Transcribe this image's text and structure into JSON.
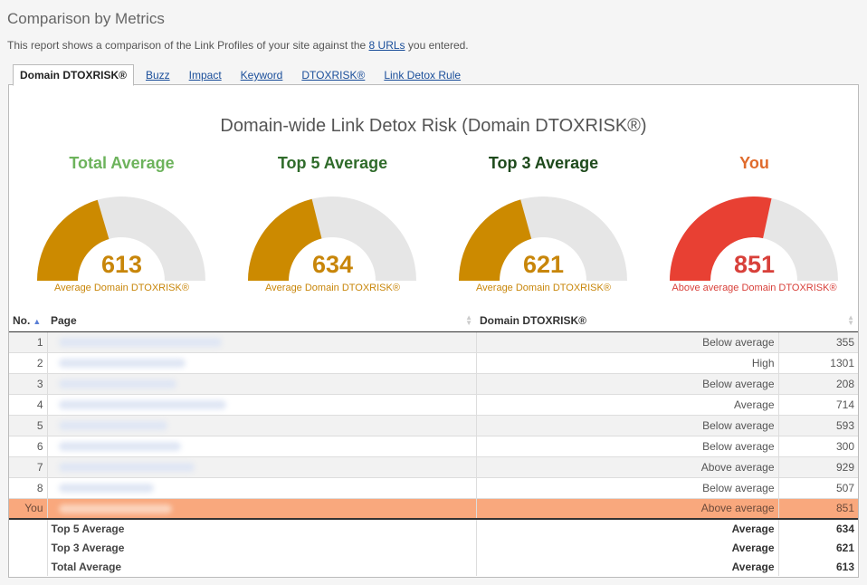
{
  "header": {
    "title": "Comparison by Metrics",
    "desc_before": "This report shows a comparison of the Link Profiles of your site against the",
    "desc_link": "8 URLs",
    "desc_after": "you entered."
  },
  "tabs": [
    {
      "label": "Domain DTOXRISK®",
      "active": true
    },
    {
      "label": "Buzz"
    },
    {
      "label": "Impact"
    },
    {
      "label": "Keyword"
    },
    {
      "label": "DTOXRISK®"
    },
    {
      "label": "Link Detox Rule"
    }
  ],
  "chart_title": "Domain-wide Link Detox Risk (Domain DTOXRISK®)",
  "chart_data": {
    "type": "gauge",
    "title": "Domain-wide Link Detox Risk (Domain DTOXRISK®)",
    "range": [
      0,
      1500
    ],
    "track_color": "#e6e6e6",
    "gauges": [
      {
        "label": "Total Average",
        "value": 613,
        "subtitle": "Average Domain DTOXRISK®",
        "label_color": "#6db35c",
        "fill_color": "#cc8a00",
        "value_color": "#c8860a",
        "sub_color": "#c8860a"
      },
      {
        "label": "Top 5 Average",
        "value": 634,
        "subtitle": "Average Domain DTOXRISK®",
        "label_color": "#2f6b2a",
        "fill_color": "#cc8a00",
        "value_color": "#c8860a",
        "sub_color": "#c8860a"
      },
      {
        "label": "Top 3 Average",
        "value": 621,
        "subtitle": "Average Domain DTOXRISK®",
        "label_color": "#1e4a1c",
        "fill_color": "#cc8a00",
        "value_color": "#c8860a",
        "sub_color": "#c8860a"
      },
      {
        "label": "You",
        "value": 851,
        "subtitle": "Above average Domain DTOXRISK®",
        "label_color": "#e06b2c",
        "fill_color": "#e84033",
        "value_color": "#d8403a",
        "sub_color": "#d8403a"
      }
    ]
  },
  "table": {
    "headers": {
      "no": "No.",
      "page": "Page",
      "metric": "Domain DTOXRISK®"
    },
    "rows": [
      {
        "no": "1",
        "category": "Below average",
        "value": "355"
      },
      {
        "no": "2",
        "category": "High",
        "value": "1301"
      },
      {
        "no": "3",
        "category": "Below average",
        "value": "208"
      },
      {
        "no": "4",
        "category": "Average",
        "value": "714"
      },
      {
        "no": "5",
        "category": "Below average",
        "value": "593"
      },
      {
        "no": "6",
        "category": "Below average",
        "value": "300"
      },
      {
        "no": "7",
        "category": "Above average",
        "value": "929"
      },
      {
        "no": "8",
        "category": "Below average",
        "value": "507"
      },
      {
        "no": "You",
        "category": "Above average",
        "value": "851"
      }
    ],
    "summary": [
      {
        "label": "Top 5 Average",
        "category": "Average",
        "value": "634"
      },
      {
        "label": "Top 3 Average",
        "category": "Average",
        "value": "621"
      },
      {
        "label": "Total Average",
        "category": "Average",
        "value": "613"
      }
    ]
  }
}
